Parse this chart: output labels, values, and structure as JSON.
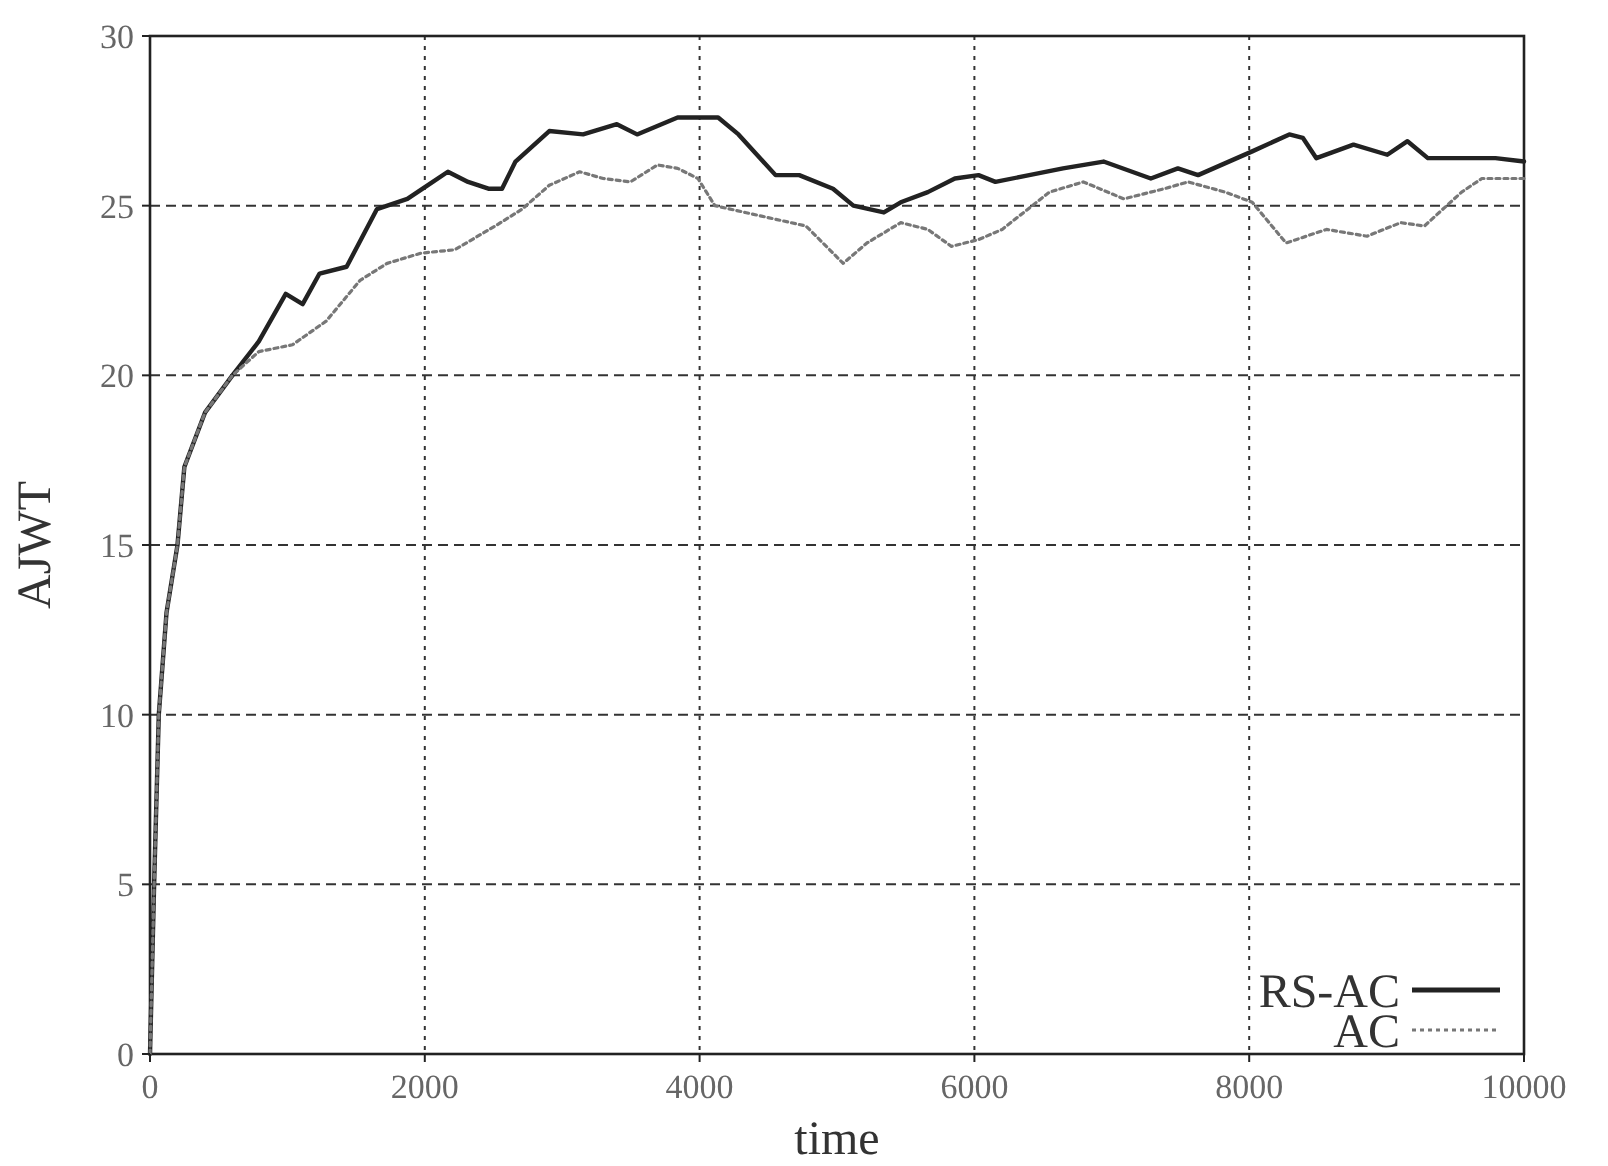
{
  "chart_data": {
    "type": "line",
    "xlabel": "time",
    "ylabel": "AJWT",
    "xlim": [
      0,
      10000
    ],
    "ylim": [
      0,
      30
    ],
    "xticks": [
      0,
      2000,
      4000,
      6000,
      8000,
      10000
    ],
    "yticks": [
      0,
      5,
      10,
      15,
      20,
      25,
      30
    ],
    "grid": true,
    "legend": "bottom right",
    "series": [
      {
        "name": "RS-AC",
        "color": "#222222",
        "line_style": "solid",
        "x": [
          0,
          30,
          64,
          120,
          200,
          250,
          400,
          600,
          792,
          988,
          1111,
          1234,
          1431,
          1652,
          1873,
          2020,
          2168,
          2315,
          2463,
          2562,
          2660,
          2906,
          3152,
          3398,
          3545,
          3840,
          4135,
          4283,
          4553,
          4725,
          4971,
          5119,
          5341,
          5464,
          5661,
          5858,
          6030,
          6153,
          6399,
          6645,
          6940,
          7284,
          7481,
          7628,
          8022,
          8292,
          8390,
          8489,
          8759,
          9005,
          9152,
          9300,
          9595,
          9792,
          10000
        ],
        "values": [
          0,
          5,
          10,
          13,
          15,
          17.3,
          18.9,
          20,
          21,
          22.4,
          22.1,
          23,
          23.2,
          24.9,
          25.2,
          25.6,
          26,
          25.7,
          25.5,
          25.5,
          26.3,
          27.2,
          27.1,
          27.4,
          27.1,
          27.6,
          27.6,
          27.1,
          25.9,
          25.9,
          25.5,
          25,
          24.8,
          25.1,
          25.4,
          25.8,
          25.9,
          25.7,
          25.9,
          26.1,
          26.3,
          25.8,
          26.1,
          25.9,
          26.6,
          27.1,
          27,
          26.4,
          26.8,
          26.5,
          26.9,
          26.4,
          26.4,
          26.4,
          26.3
        ]
      },
      {
        "name": "AC",
        "color": "#777777",
        "line_style": "dotted",
        "x": [
          0,
          30,
          64,
          120,
          200,
          250,
          400,
          600,
          792,
          1037,
          1283,
          1529,
          1726,
          1972,
          2217,
          2512,
          2709,
          2906,
          3127,
          3299,
          3496,
          3693,
          3840,
          3988,
          4111,
          4332,
          4774,
          4873,
          5045,
          5218,
          5464,
          5661,
          5833,
          6030,
          6202,
          6547,
          6793,
          7088,
          7383,
          7555,
          7825,
          8022,
          8268,
          8563,
          8858,
          9103,
          9275,
          9546,
          9693,
          10000
        ],
        "values": [
          0,
          5,
          10,
          13,
          15,
          17.3,
          18.9,
          20,
          20.7,
          20.9,
          21.6,
          22.8,
          23.3,
          23.6,
          23.7,
          24.4,
          24.9,
          25.6,
          26,
          25.8,
          25.7,
          26.2,
          26.1,
          25.8,
          25,
          24.8,
          24.4,
          24,
          23.3,
          23.9,
          24.5,
          24.3,
          23.8,
          24,
          24.3,
          25.4,
          25.7,
          25.2,
          25.5,
          25.7,
          25.4,
          25.1,
          23.9,
          24.3,
          24.1,
          24.5,
          24.4,
          25.4,
          25.8,
          25.8
        ]
      }
    ]
  }
}
